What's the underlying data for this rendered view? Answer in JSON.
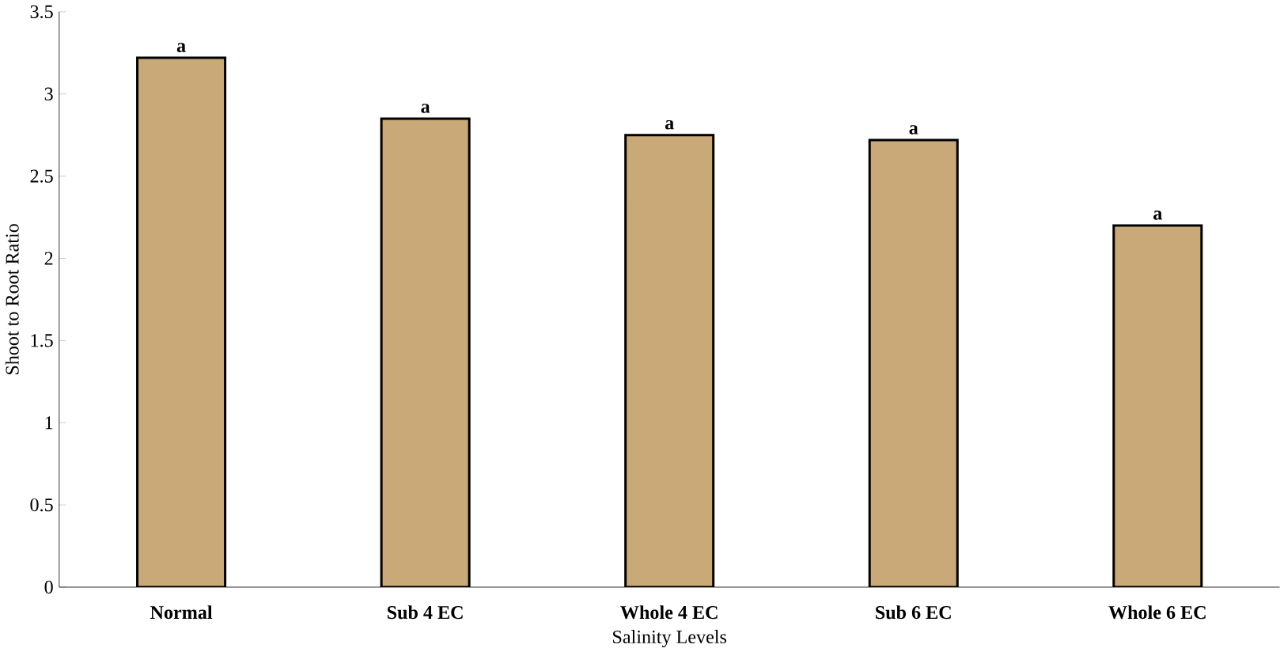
{
  "chart_data": {
    "type": "bar",
    "xlabel": "Salinity Levels",
    "ylabel": "Shoot to Root Ratio",
    "categories": [
      "Normal",
      "Sub 4 EC",
      "Whole 4 EC",
      "Sub 6 EC",
      "Whole 6 EC"
    ],
    "values": [
      3.22,
      2.85,
      2.75,
      2.72,
      2.2
    ],
    "color": "#c9a978",
    "ylim": [
      0,
      3.5
    ],
    "yticks": [
      0,
      0.5,
      1,
      1.5,
      2,
      2.5,
      3,
      3.5
    ],
    "grid": false,
    "annotations": [
      {
        "text": "a",
        "x": "Normal",
        "y": 3.22
      },
      {
        "text": "a",
        "x": "Sub 4 EC",
        "y": 2.85
      },
      {
        "text": "a",
        "x": "Whole 4 EC",
        "y": 2.75
      },
      {
        "text": "a",
        "x": "Sub 6 EC",
        "y": 2.72
      },
      {
        "text": "a",
        "x": "Whole 6 EC",
        "y": 2.2
      }
    ]
  }
}
